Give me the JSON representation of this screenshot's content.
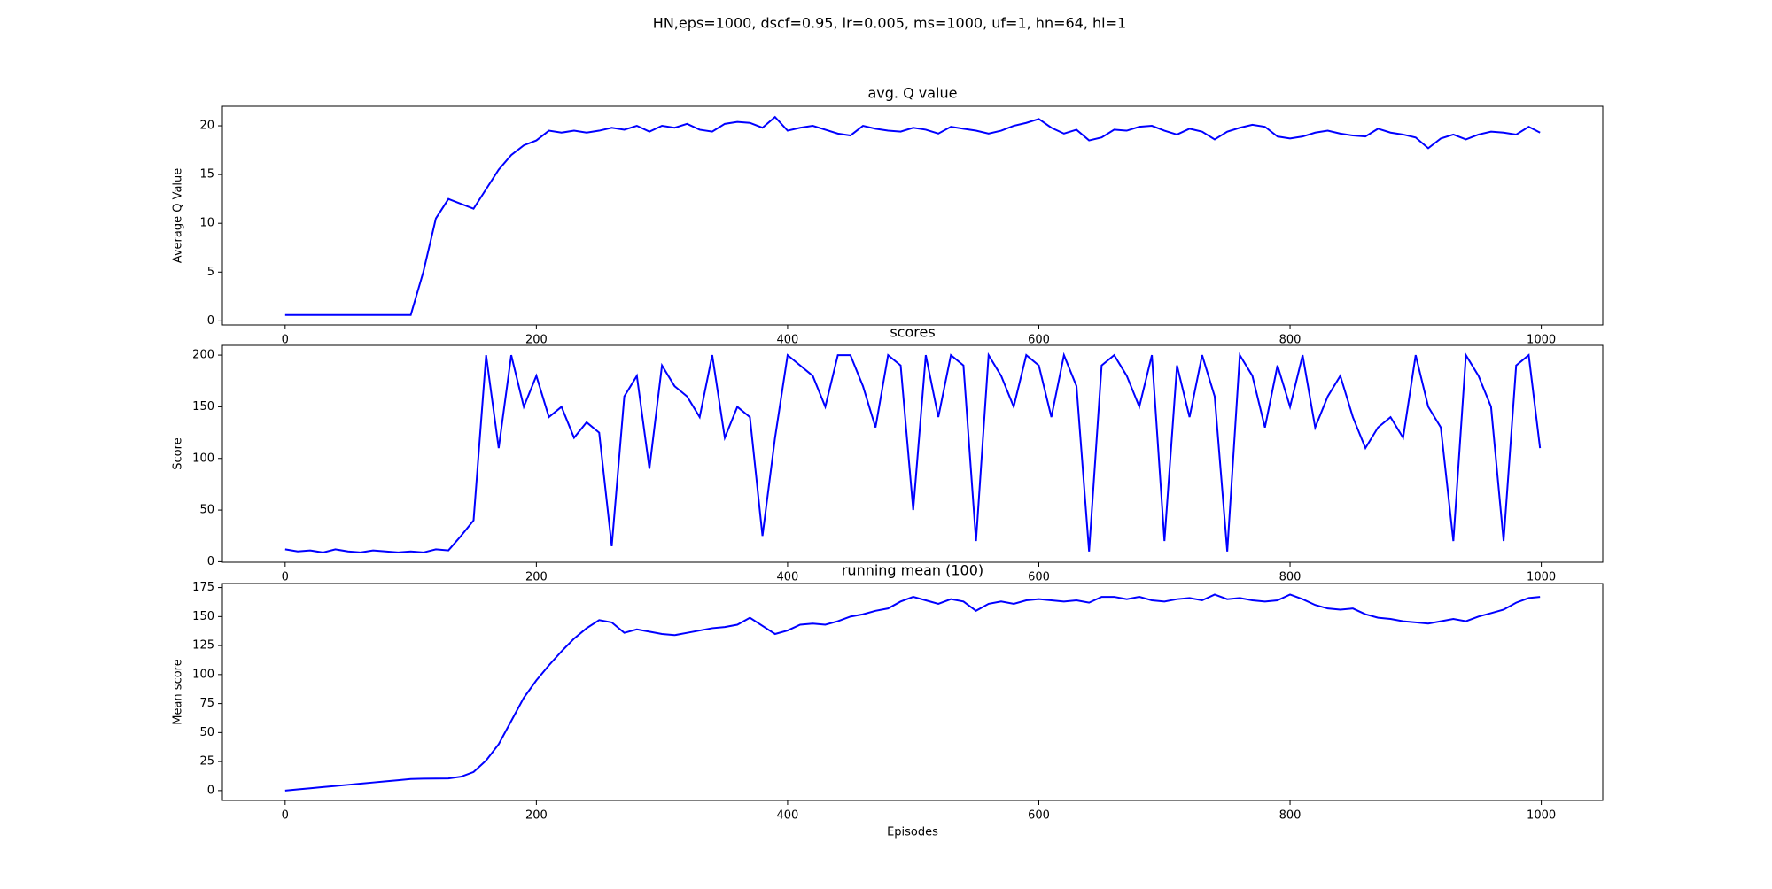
{
  "title": "HN,eps=1000, dscf=0.95, lr=0.005, ms=1000, uf=1, hn=64, hl=1",
  "chart_data": [
    {
      "type": "line",
      "title": "avg. Q value",
      "y_label": "Average Q Value",
      "color": "#0000ff",
      "x": [
        0,
        10,
        20,
        30,
        40,
        50,
        60,
        70,
        80,
        90,
        100,
        110,
        120,
        130,
        140,
        150,
        160,
        170,
        180,
        190,
        200,
        210,
        220,
        230,
        240,
        250,
        260,
        270,
        280,
        290,
        300,
        310,
        320,
        330,
        340,
        350,
        360,
        370,
        380,
        390,
        400,
        410,
        420,
        430,
        440,
        450,
        460,
        470,
        480,
        490,
        500,
        510,
        520,
        530,
        540,
        550,
        560,
        570,
        580,
        590,
        600,
        610,
        620,
        630,
        640,
        650,
        660,
        670,
        680,
        690,
        700,
        710,
        720,
        730,
        740,
        750,
        760,
        770,
        780,
        790,
        800,
        810,
        820,
        830,
        840,
        850,
        860,
        870,
        880,
        890,
        900,
        910,
        920,
        930,
        940,
        950,
        960,
        970,
        980,
        990,
        999
      ],
      "values": [
        0.6,
        0.6,
        0.6,
        0.6,
        0.6,
        0.6,
        0.6,
        0.6,
        0.6,
        0.6,
        0.6,
        5,
        10.5,
        12.5,
        12,
        11.5,
        13.5,
        15.5,
        17,
        18,
        18.5,
        19.5,
        19.3,
        19.5,
        19.3,
        19.5,
        19.8,
        19.6,
        20,
        19.4,
        20,
        19.8,
        20.2,
        19.6,
        19.4,
        20.2,
        20.4,
        20.3,
        19.8,
        20.9,
        19.5,
        19.8,
        20,
        19.6,
        19.2,
        19,
        20,
        19.7,
        19.5,
        19.4,
        19.8,
        19.6,
        19.2,
        19.9,
        19.7,
        19.5,
        19.2,
        19.5,
        20,
        20.3,
        20.7,
        19.8,
        19.2,
        19.6,
        18.5,
        18.8,
        19.6,
        19.5,
        19.9,
        20,
        19.5,
        19.1,
        19.7,
        19.4,
        18.6,
        19.4,
        19.8,
        20.1,
        19.9,
        18.9,
        18.7,
        18.9,
        19.3,
        19.5,
        19.2,
        19,
        18.9,
        19.7,
        19.3,
        19.1,
        18.8,
        17.7,
        18.7,
        19.1,
        18.6,
        19.1,
        19.4,
        19.3,
        19.1,
        19.9,
        19.3
      ],
      "xlim": [
        -49.95,
        1048.95
      ],
      "xticks": [
        0,
        200,
        400,
        600,
        800,
        1000
      ],
      "ylim": [
        -0.42,
        22.0
      ],
      "yticks": [
        0,
        5,
        10,
        15,
        20
      ]
    },
    {
      "type": "line",
      "title": "scores",
      "y_label": "Score",
      "color": "#0000ff",
      "x": [
        0,
        10,
        20,
        30,
        40,
        50,
        60,
        70,
        80,
        90,
        100,
        110,
        120,
        130,
        140,
        150,
        160,
        170,
        180,
        190,
        200,
        210,
        220,
        230,
        240,
        250,
        260,
        270,
        280,
        290,
        300,
        310,
        320,
        330,
        340,
        350,
        360,
        370,
        380,
        390,
        400,
        410,
        420,
        430,
        440,
        450,
        460,
        470,
        480,
        490,
        500,
        510,
        520,
        530,
        540,
        550,
        560,
        570,
        580,
        590,
        600,
        610,
        620,
        630,
        640,
        650,
        660,
        670,
        680,
        690,
        700,
        710,
        720,
        730,
        740,
        750,
        760,
        770,
        780,
        790,
        800,
        810,
        820,
        830,
        840,
        850,
        860,
        870,
        880,
        890,
        900,
        910,
        920,
        930,
        940,
        950,
        960,
        970,
        980,
        990,
        999
      ],
      "values": [
        12,
        10,
        11,
        9,
        12,
        10,
        9,
        11,
        10,
        9,
        10,
        9,
        12,
        11,
        25,
        40,
        200,
        110,
        200,
        150,
        180,
        140,
        150,
        120,
        135,
        125,
        15,
        160,
        180,
        90,
        190,
        170,
        160,
        140,
        200,
        120,
        150,
        140,
        25,
        120,
        200,
        190,
        180,
        150,
        200,
        200,
        170,
        130,
        200,
        190,
        50,
        200,
        140,
        200,
        190,
        20,
        200,
        180,
        150,
        200,
        190,
        140,
        200,
        170,
        10,
        190,
        200,
        180,
        150,
        200,
        20,
        190,
        140,
        200,
        160,
        10,
        200,
        180,
        130,
        190,
        150,
        200,
        130,
        160,
        180,
        140,
        110,
        130,
        140,
        120,
        200,
        150,
        130,
        20,
        200,
        180,
        150,
        20,
        190,
        200,
        110
      ],
      "xlim": [
        -49.95,
        1048.95
      ],
      "xticks": [
        0,
        200,
        400,
        600,
        800,
        1000
      ],
      "ylim": [
        -0.5,
        209.5
      ],
      "yticks": [
        0,
        50,
        100,
        150,
        200
      ]
    },
    {
      "type": "line",
      "title": "running mean (100)",
      "y_label": "Mean score",
      "x_label": "Episodes",
      "color": "#0000ff",
      "x": [
        0,
        10,
        20,
        30,
        40,
        50,
        60,
        70,
        80,
        90,
        100,
        110,
        120,
        130,
        140,
        150,
        160,
        170,
        180,
        190,
        200,
        210,
        220,
        230,
        240,
        250,
        260,
        270,
        280,
        290,
        300,
        310,
        320,
        330,
        340,
        350,
        360,
        370,
        380,
        390,
        400,
        410,
        420,
        430,
        440,
        450,
        460,
        470,
        480,
        490,
        500,
        510,
        520,
        530,
        540,
        550,
        560,
        570,
        580,
        590,
        600,
        610,
        620,
        630,
        640,
        650,
        660,
        670,
        680,
        690,
        700,
        710,
        720,
        730,
        740,
        750,
        760,
        770,
        780,
        790,
        800,
        810,
        820,
        830,
        840,
        850,
        860,
        870,
        880,
        890,
        900,
        910,
        920,
        930,
        940,
        950,
        960,
        970,
        980,
        990,
        999
      ],
      "values": [
        0,
        1,
        2,
        3,
        4,
        5,
        6,
        7,
        8,
        9,
        10,
        10.3,
        10.4,
        10.5,
        12,
        16,
        26,
        40,
        60,
        80,
        95,
        108,
        120,
        131,
        140,
        147,
        145,
        136,
        139,
        137,
        135,
        134,
        136,
        138,
        140,
        141,
        143,
        149,
        142,
        135,
        138,
        143,
        144,
        143,
        146,
        150,
        152,
        155,
        157,
        163,
        167,
        164,
        161,
        165,
        163,
        155,
        161,
        163,
        161,
        164,
        165,
        164,
        163,
        164,
        162,
        167,
        167,
        165,
        167,
        164,
        163,
        165,
        166,
        164,
        169,
        165,
        166,
        164,
        163,
        164,
        169,
        165,
        160,
        157,
        156,
        157,
        152,
        149,
        148,
        146,
        145,
        144,
        146,
        148,
        146,
        150,
        153,
        156,
        162,
        166,
        167
      ],
      "xlim": [
        -49.95,
        1048.95
      ],
      "xticks": [
        0,
        200,
        400,
        600,
        800,
        1000
      ],
      "ylim": [
        -8.5,
        178.5
      ],
      "yticks": [
        0,
        25,
        50,
        75,
        100,
        125,
        150,
        175
      ]
    }
  ]
}
